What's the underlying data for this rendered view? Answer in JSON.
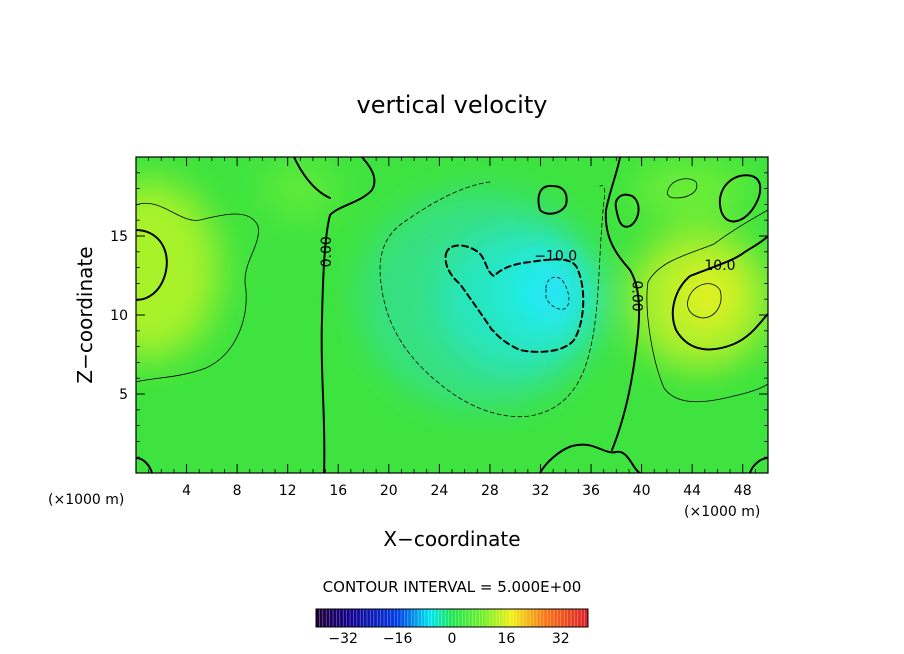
{
  "chart_data": {
    "type": "heatmap",
    "title": "vertical velocity",
    "xlabel": "X−coordinate",
    "ylabel": "Z−coordinate",
    "x_unit": "(×1000 m)",
    "x_unit_right": "(×1000 m)",
    "xlim": [
      0,
      50
    ],
    "ylim": [
      0,
      20
    ],
    "xticks": [
      4,
      8,
      12,
      16,
      20,
      24,
      28,
      32,
      36,
      40,
      44,
      48
    ],
    "yticks": [
      5,
      10,
      15
    ],
    "contour_interval_text": "CONTOUR INTERVAL = 5.000E+00",
    "contour_labels": [
      {
        "text": "0.00",
        "x": 15.1,
        "z": 14.0,
        "angle": -90
      },
      {
        "text": "0.00",
        "x": 39.6,
        "z": 11.2,
        "angle": 90
      },
      {
        "text": "−10.0",
        "x": 33.2,
        "z": 13.7,
        "angle": 0
      },
      {
        "text": "10.0",
        "x": 46.2,
        "z": 13.1,
        "angle": 0
      }
    ],
    "features": [
      {
        "kind": "min",
        "x": 33.0,
        "z": 11.5,
        "value": -17
      },
      {
        "kind": "max",
        "x": 45.0,
        "z": 11.2,
        "value": 14
      },
      {
        "kind": "max",
        "x": 0.5,
        "z": 13.5,
        "value": 11
      }
    ],
    "colorbar": {
      "range": [
        -40,
        40
      ],
      "ticks": [
        -32,
        -16,
        0,
        16,
        32
      ],
      "tick_labels": [
        "−32",
        "−16",
        "0",
        "16",
        "32"
      ]
    },
    "grid": false,
    "legend": "none"
  }
}
